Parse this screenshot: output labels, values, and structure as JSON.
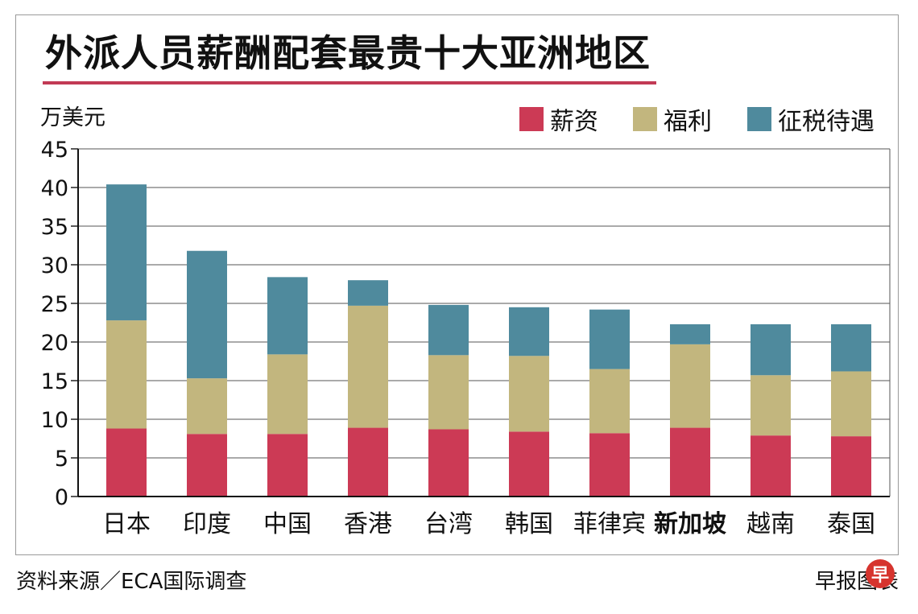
{
  "footer": {
    "source": "资料来源／ECA国际调查",
    "credit": "早报图表",
    "logo_glyph": "早"
  },
  "chart_data": {
    "type": "bar",
    "stacked": true,
    "title": "外派人员薪酬配套最贵十大亚洲地区",
    "ylabel": "万美元",
    "xlabel": "",
    "ylim": [
      0,
      45
    ],
    "yticks": [
      0,
      5,
      10,
      15,
      20,
      25,
      30,
      35,
      40,
      45
    ],
    "grid": true,
    "legend_position": "top-right",
    "categories": [
      "日本",
      "印度",
      "中国",
      "香港",
      "台湾",
      "韩国",
      "菲律宾",
      "新加坡",
      "越南",
      "泰国"
    ],
    "highlight_category": "新加坡",
    "series": [
      {
        "name": "薪资",
        "color": "#cc3a55",
        "values": [
          8.8,
          8.1,
          8.1,
          8.9,
          8.7,
          8.4,
          8.2,
          8.9,
          7.9,
          7.8
        ]
      },
      {
        "name": "福利",
        "color": "#c2b67e",
        "values": [
          14.0,
          7.2,
          10.3,
          15.8,
          9.6,
          9.8,
          8.3,
          10.8,
          7.8,
          8.4
        ]
      },
      {
        "name": "征税待遇",
        "color": "#4f8a9d",
        "values": [
          17.6,
          16.5,
          10.0,
          3.3,
          6.5,
          6.3,
          7.7,
          2.6,
          6.6,
          6.1
        ]
      }
    ]
  }
}
